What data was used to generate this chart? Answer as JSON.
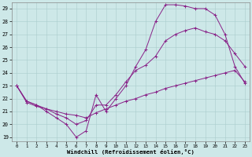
{
  "xlabel": "Windchill (Refroidissement éolien,°C)",
  "bg_color": "#cde8e8",
  "line_color": "#882288",
  "grid_color": "#aacccc",
  "xlim": [
    -0.5,
    23.5
  ],
  "ylim": [
    18.7,
    29.5
  ],
  "yticks": [
    19,
    20,
    21,
    22,
    23,
    24,
    25,
    26,
    27,
    28,
    29
  ],
  "xticks": [
    0,
    1,
    2,
    3,
    4,
    5,
    6,
    7,
    8,
    9,
    10,
    11,
    12,
    13,
    14,
    15,
    16,
    17,
    18,
    19,
    20,
    21,
    22,
    23
  ],
  "s1x": [
    0,
    1,
    2,
    3,
    4,
    5,
    6,
    7,
    8,
    9,
    10,
    11,
    12,
    13,
    14,
    15,
    16,
    17,
    18,
    19,
    20,
    21,
    22,
    23
  ],
  "s1y": [
    23.0,
    21.8,
    21.5,
    21.0,
    20.5,
    20.0,
    19.0,
    19.5,
    22.3,
    21.0,
    22.0,
    23.0,
    24.5,
    25.8,
    28.0,
    29.3,
    29.3,
    29.2,
    29.0,
    29.0,
    28.5,
    27.0,
    24.5,
    23.2
  ],
  "s2x": [
    0,
    1,
    2,
    3,
    4,
    5,
    6,
    7,
    8,
    9,
    10,
    11,
    12,
    13,
    14,
    15,
    16,
    17,
    18,
    19,
    20,
    21,
    22,
    23
  ],
  "s2y": [
    23.0,
    21.8,
    21.5,
    21.2,
    20.8,
    20.5,
    20.0,
    20.3,
    21.5,
    21.5,
    22.3,
    23.3,
    24.2,
    24.6,
    25.3,
    26.5,
    27.0,
    27.3,
    27.5,
    27.2,
    27.0,
    26.5,
    25.5,
    24.5
  ],
  "s3x": [
    0,
    1,
    2,
    3,
    4,
    5,
    6,
    7,
    8,
    9,
    10,
    11,
    12,
    13,
    14,
    15,
    16,
    17,
    18,
    19,
    20,
    21,
    22,
    23
  ],
  "s3y": [
    23.0,
    21.7,
    21.4,
    21.2,
    21.0,
    20.8,
    20.7,
    20.5,
    20.9,
    21.2,
    21.5,
    21.8,
    22.0,
    22.3,
    22.5,
    22.8,
    23.0,
    23.2,
    23.4,
    23.6,
    23.8,
    24.0,
    24.2,
    23.3
  ]
}
